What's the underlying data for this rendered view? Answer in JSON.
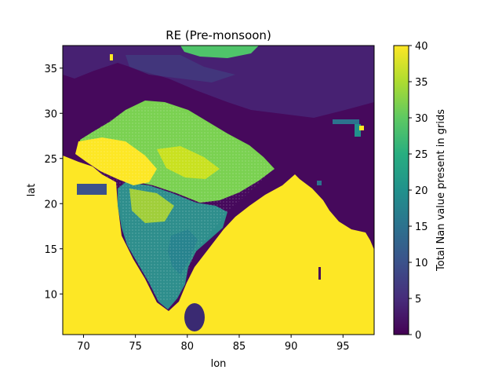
{
  "chart_data": {
    "type": "heatmap",
    "title": "RE (Pre-monsoon)",
    "xlabel": "lon",
    "ylabel": "lat",
    "xlim": [
      68,
      98
    ],
    "ylim": [
      5.5,
      37.5
    ],
    "xticks": [
      70,
      75,
      80,
      85,
      90,
      95
    ],
    "yticks": [
      10,
      15,
      20,
      25,
      30,
      35
    ],
    "colorbar": {
      "label": "Total Nan value present in grids",
      "colormap": "viridis",
      "range": [
        0,
        40
      ],
      "ticks": [
        0,
        5,
        10,
        15,
        20,
        25,
        30,
        35,
        40
      ]
    },
    "grid": false,
    "regions_description_values": {
      "ocean_and_out_of_domain": 40,
      "himalaya_tibet_background": 2,
      "indian_peninsula_interior": 22,
      "indo_gangetic_plain": 30
    }
  }
}
